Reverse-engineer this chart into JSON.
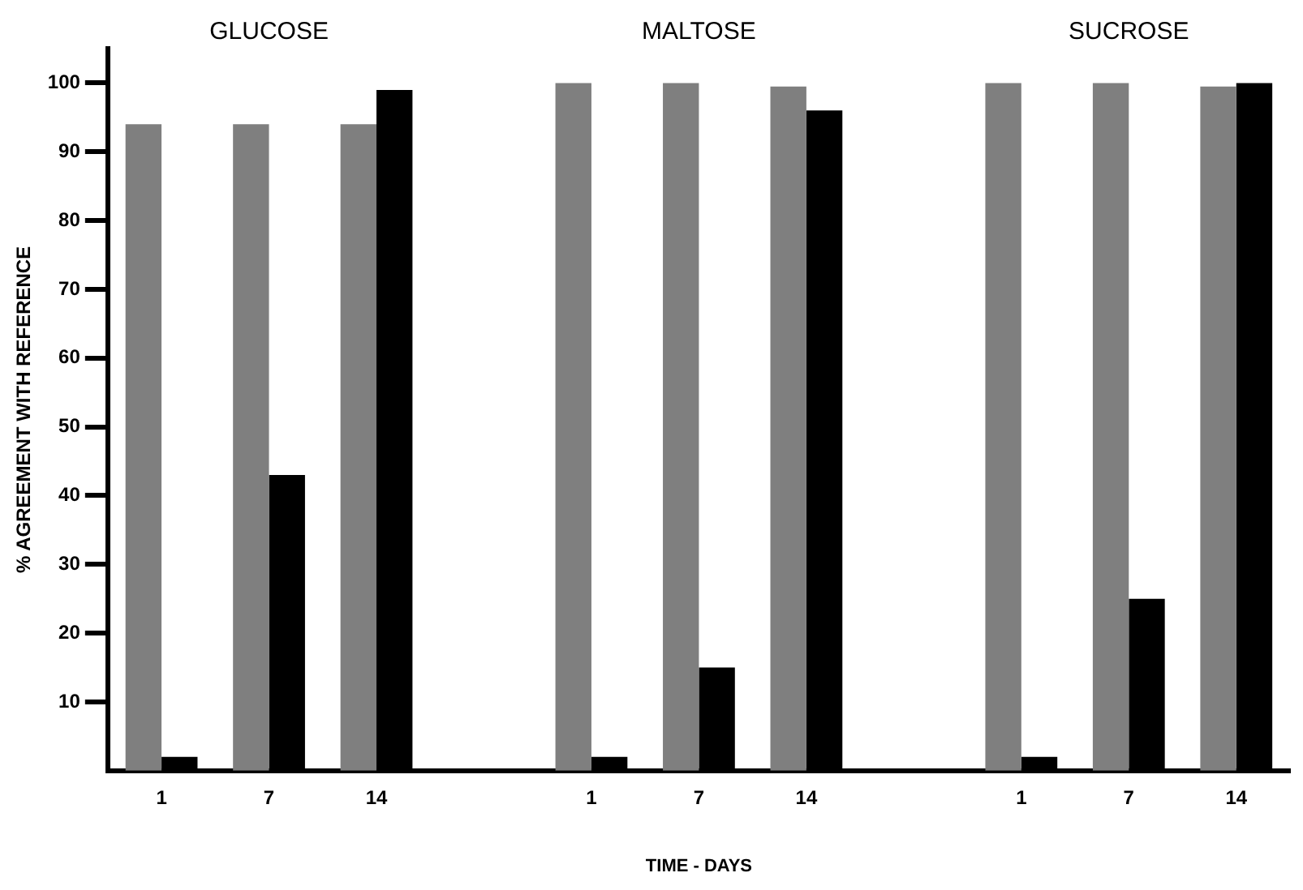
{
  "chart_data": {
    "type": "bar",
    "xlabel": "TIME - DAYS",
    "ylabel": "% AGREEMENT WITH REFERENCE",
    "annotations": [
      "GLUCOSE",
      "MALTOSE",
      "SUCROSE"
    ],
    "categories": [
      "1",
      "7",
      "14",
      null,
      "1",
      "7",
      "14",
      null,
      "1",
      "7",
      "14"
    ],
    "series": [
      {
        "color": "#7f7f7f",
        "values": [
          94,
          94,
          94,
          null,
          100,
          100,
          99.5,
          null,
          100,
          100,
          99.5
        ]
      },
      {
        "color": "#000000",
        "values": [
          2,
          43,
          99,
          null,
          2,
          15,
          96,
          null,
          2,
          25,
          100
        ]
      }
    ],
    "ylim": [
      0,
      105
    ],
    "yticks": [
      10,
      20,
      30,
      40,
      50,
      60,
      70,
      80,
      90,
      100
    ],
    "grid": false,
    "legend": false
  }
}
